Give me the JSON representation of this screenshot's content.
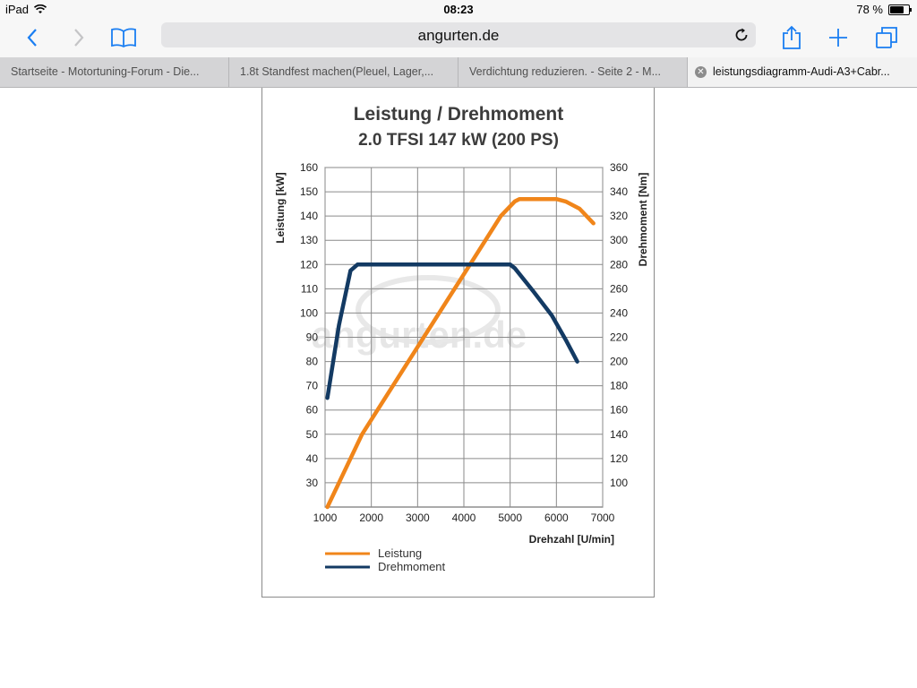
{
  "status_bar": {
    "device": "iPad",
    "time": "08:23",
    "battery": "78 %"
  },
  "toolbar": {
    "url": "angurten.de"
  },
  "tabs": [
    {
      "label": "Startseite - Motortuning-Forum - Die..."
    },
    {
      "label": "1.8t Standfest machen(Pleuel, Lager,..."
    },
    {
      "label": "Verdichtung reduzieren. - Seite 2 - M..."
    },
    {
      "label": "leistungsdiagramm-Audi-A3+Cabr...",
      "active": true
    }
  ],
  "icons": {
    "back": "chevron-left-icon",
    "forward": "chevron-right-icon",
    "bookmarks": "book-icon",
    "reload": "reload-icon",
    "share": "share-icon",
    "new_tab": "plus-icon",
    "tabs": "tabs-icon"
  },
  "colors": {
    "accent": "#1a7ef2",
    "leistung": "#f0851a",
    "drehmoment": "#133a63"
  },
  "watermark": "angurten.de",
  "chart_data": {
    "type": "line",
    "title": "Leistung / Drehmoment",
    "subtitle": "2.0 TFSI 147 kW (200 PS)",
    "xlabel": "Drehzahl [U/min]",
    "ylabel_left": "Leistung [kW]",
    "ylabel_right": "Drehmoment [Nm]",
    "xlim": [
      1000,
      7000
    ],
    "x_ticks": [
      "1000",
      "2000",
      "3000",
      "4000",
      "5000",
      "6000",
      "7000"
    ],
    "ylim_left": [
      20,
      160
    ],
    "y_ticks_left": [
      "30",
      "40",
      "50",
      "60",
      "70",
      "80",
      "90",
      "100",
      "110",
      "120",
      "130",
      "140",
      "150",
      "160"
    ],
    "ylim_right": [
      80,
      360
    ],
    "y_ticks_right": [
      "100",
      "120",
      "140",
      "160",
      "180",
      "200",
      "220",
      "240",
      "260",
      "280",
      "300",
      "320",
      "340",
      "360"
    ],
    "grid": true,
    "legend_position": "bottom-left",
    "series": [
      {
        "name": "Leistung",
        "axis": "left",
        "color": "#f0851a",
        "x": [
          1050,
          1800,
          2400,
          3000,
          3600,
          4200,
          4800,
          5100,
          5200,
          6000,
          6200,
          6500,
          6800
        ],
        "y": [
          20,
          50,
          68,
          86,
          104,
          122,
          140,
          146,
          147,
          147,
          146,
          143,
          137
        ]
      },
      {
        "name": "Drehmoment",
        "axis": "right",
        "color": "#133a63",
        "x": [
          1050,
          1300,
          1550,
          1700,
          5000,
          5100,
          5500,
          5900,
          6200,
          6450
        ],
        "y": [
          170,
          230,
          275,
          280,
          280,
          277,
          258,
          238,
          218,
          200
        ]
      }
    ]
  }
}
